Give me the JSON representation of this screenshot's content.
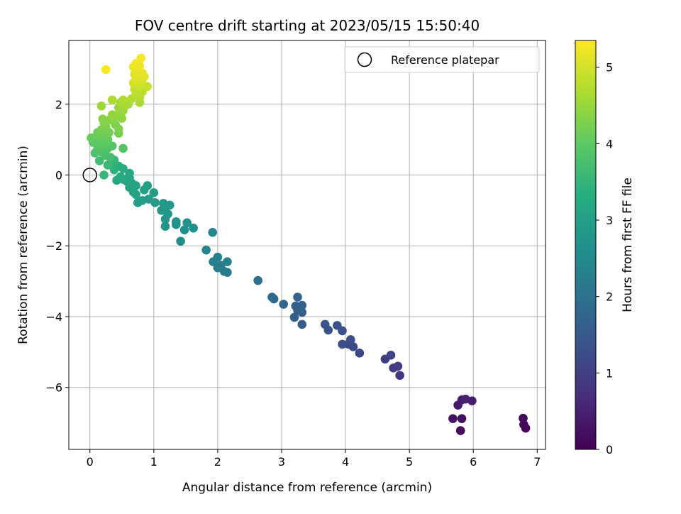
{
  "chart_data": {
    "type": "scatter",
    "title": "FOV centre drift starting at 2023/05/15 15:50:40",
    "xlabel": "Angular distance from reference (arcmin)",
    "ylabel": "Rotation from reference (arcmin)",
    "xlim": [
      -0.33,
      7.13
    ],
    "ylim": [
      -7.75,
      3.8
    ],
    "xticks": [
      0,
      1,
      2,
      3,
      4,
      5,
      6,
      7
    ],
    "yticks": [
      -6,
      -4,
      -2,
      0,
      2
    ],
    "grid": true,
    "legend": {
      "position": "top-right",
      "entries": [
        "Reference platepar"
      ]
    },
    "reference_point": {
      "x": 0,
      "y": 0
    },
    "colorbar": {
      "label": "Hours from first FF file",
      "range": [
        0,
        5.35
      ],
      "ticks": [
        0,
        1,
        2,
        3,
        4,
        5
      ],
      "colormap": "viridis"
    },
    "points": [
      {
        "x": 6.82,
        "y": -7.15,
        "h": 0.05
      },
      {
        "x": 6.79,
        "y": -7.05,
        "h": 0.08
      },
      {
        "x": 6.78,
        "y": -6.87,
        "h": 0.1
      },
      {
        "x": 5.8,
        "y": -7.22,
        "h": 0.15
      },
      {
        "x": 5.82,
        "y": -6.88,
        "h": 0.22
      },
      {
        "x": 5.68,
        "y": -6.88,
        "h": 0.28
      },
      {
        "x": 5.76,
        "y": -6.5,
        "h": 0.35
      },
      {
        "x": 5.82,
        "y": -6.35,
        "h": 0.4
      },
      {
        "x": 5.98,
        "y": -6.38,
        "h": 0.45
      },
      {
        "x": 5.88,
        "y": -6.33,
        "h": 0.48
      },
      {
        "x": 4.85,
        "y": -5.66,
        "h": 0.85
      },
      {
        "x": 4.75,
        "y": -5.45,
        "h": 0.9
      },
      {
        "x": 4.82,
        "y": -5.4,
        "h": 0.95
      },
      {
        "x": 4.62,
        "y": -5.2,
        "h": 1.0
      },
      {
        "x": 4.71,
        "y": -5.09,
        "h": 1.05
      },
      {
        "x": 4.22,
        "y": -5.03,
        "h": 1.15
      },
      {
        "x": 4.12,
        "y": -4.85,
        "h": 1.2
      },
      {
        "x": 4.05,
        "y": -4.78,
        "h": 1.22
      },
      {
        "x": 3.95,
        "y": -4.78,
        "h": 1.25
      },
      {
        "x": 4.08,
        "y": -4.65,
        "h": 1.28
      },
      {
        "x": 3.95,
        "y": -4.4,
        "h": 1.3
      },
      {
        "x": 3.87,
        "y": -4.25,
        "h": 1.35
      },
      {
        "x": 3.73,
        "y": -4.38,
        "h": 1.38
      },
      {
        "x": 3.68,
        "y": -4.22,
        "h": 1.4
      },
      {
        "x": 3.32,
        "y": -4.22,
        "h": 1.55
      },
      {
        "x": 3.2,
        "y": -4.02,
        "h": 1.6
      },
      {
        "x": 3.32,
        "y": -3.88,
        "h": 1.62
      },
      {
        "x": 3.25,
        "y": -3.82,
        "h": 1.64
      },
      {
        "x": 3.22,
        "y": -3.7,
        "h": 1.66
      },
      {
        "x": 3.32,
        "y": -3.68,
        "h": 1.68
      },
      {
        "x": 3.25,
        "y": -3.45,
        "h": 1.7
      },
      {
        "x": 3.03,
        "y": -3.65,
        "h": 1.75
      },
      {
        "x": 2.88,
        "y": -3.5,
        "h": 1.8
      },
      {
        "x": 2.85,
        "y": -3.45,
        "h": 1.82
      },
      {
        "x": 2.63,
        "y": -2.98,
        "h": 1.95
      },
      {
        "x": 2.15,
        "y": -2.75,
        "h": 2.2
      },
      {
        "x": 2.1,
        "y": -2.72,
        "h": 2.22
      },
      {
        "x": 2.0,
        "y": -2.62,
        "h": 2.25
      },
      {
        "x": 2.05,
        "y": -2.55,
        "h": 2.27
      },
      {
        "x": 1.93,
        "y": -2.45,
        "h": 2.3
      },
      {
        "x": 2.15,
        "y": -2.45,
        "h": 2.32
      },
      {
        "x": 2.0,
        "y": -2.32,
        "h": 2.35
      },
      {
        "x": 1.82,
        "y": -2.12,
        "h": 2.4
      },
      {
        "x": 1.92,
        "y": -1.62,
        "h": 2.45
      },
      {
        "x": 1.42,
        "y": -1.87,
        "h": 2.6
      },
      {
        "x": 1.48,
        "y": -1.55,
        "h": 2.65
      },
      {
        "x": 1.62,
        "y": -1.5,
        "h": 2.68
      },
      {
        "x": 1.35,
        "y": -1.4,
        "h": 2.7
      },
      {
        "x": 1.52,
        "y": -1.35,
        "h": 2.72
      },
      {
        "x": 1.35,
        "y": -1.32,
        "h": 2.74
      },
      {
        "x": 1.18,
        "y": -1.45,
        "h": 2.76
      },
      {
        "x": 1.18,
        "y": -1.25,
        "h": 2.78
      },
      {
        "x": 1.22,
        "y": -1.1,
        "h": 2.8
      },
      {
        "x": 1.12,
        "y": -1.0,
        "h": 2.82
      },
      {
        "x": 1.18,
        "y": -0.92,
        "h": 2.84
      },
      {
        "x": 1.25,
        "y": -0.85,
        "h": 2.86
      },
      {
        "x": 1.15,
        "y": -0.8,
        "h": 2.88
      },
      {
        "x": 1.02,
        "y": -0.78,
        "h": 2.9
      },
      {
        "x": 0.92,
        "y": -0.68,
        "h": 2.92
      },
      {
        "x": 0.82,
        "y": -0.72,
        "h": 2.94
      },
      {
        "x": 0.75,
        "y": -0.78,
        "h": 2.96
      },
      {
        "x": 1.0,
        "y": -0.5,
        "h": 2.98
      },
      {
        "x": 0.9,
        "y": -0.3,
        "h": 3.0
      },
      {
        "x": 0.85,
        "y": -0.42,
        "h": 3.02
      },
      {
        "x": 0.72,
        "y": -0.55,
        "h": 3.04
      },
      {
        "x": 0.68,
        "y": -0.48,
        "h": 3.06
      },
      {
        "x": 0.62,
        "y": -0.35,
        "h": 3.08
      },
      {
        "x": 0.72,
        "y": -0.3,
        "h": 3.1
      },
      {
        "x": 0.65,
        "y": -0.22,
        "h": 3.12
      },
      {
        "x": 0.58,
        "y": -0.18,
        "h": 3.14
      },
      {
        "x": 0.62,
        "y": -0.08,
        "h": 3.16
      },
      {
        "x": 0.52,
        "y": -0.12,
        "h": 3.18
      },
      {
        "x": 0.42,
        "y": -0.15,
        "h": 3.2
      },
      {
        "x": 0.48,
        "y": -0.05,
        "h": 3.22
      },
      {
        "x": 0.62,
        "y": 0.05,
        "h": 3.25
      },
      {
        "x": 0.52,
        "y": 0.18,
        "h": 3.3
      },
      {
        "x": 0.45,
        "y": 0.25,
        "h": 3.35
      },
      {
        "x": 0.38,
        "y": 0.15,
        "h": 3.4
      },
      {
        "x": 0.32,
        "y": 0.3,
        "h": 3.45
      },
      {
        "x": 0.38,
        "y": 0.42,
        "h": 3.5
      },
      {
        "x": 0.22,
        "y": 0.0,
        "h": 3.55
      },
      {
        "x": 0.28,
        "y": 0.28,
        "h": 3.6
      },
      {
        "x": 0.15,
        "y": 0.4,
        "h": 3.65
      },
      {
        "x": 0.32,
        "y": 0.5,
        "h": 3.7
      },
      {
        "x": 0.25,
        "y": 0.55,
        "h": 3.75
      },
      {
        "x": 0.08,
        "y": 0.62,
        "h": 3.8
      },
      {
        "x": 0.18,
        "y": 0.65,
        "h": 3.82
      },
      {
        "x": 0.12,
        "y": 0.72,
        "h": 3.85
      },
      {
        "x": 0.28,
        "y": 0.75,
        "h": 3.88
      },
      {
        "x": 0.52,
        "y": 0.75,
        "h": 3.9
      },
      {
        "x": 0.35,
        "y": 0.82,
        "h": 3.92
      },
      {
        "x": 0.12,
        "y": 0.85,
        "h": 3.95
      },
      {
        "x": 0.22,
        "y": 0.88,
        "h": 3.97
      },
      {
        "x": 0.05,
        "y": 0.92,
        "h": 4.0
      },
      {
        "x": 0.18,
        "y": 0.95,
        "h": 4.02
      },
      {
        "x": 0.28,
        "y": 1.0,
        "h": 4.05
      },
      {
        "x": 0.02,
        "y": 1.05,
        "h": 4.08
      },
      {
        "x": 0.15,
        "y": 1.08,
        "h": 4.1
      },
      {
        "x": 0.22,
        "y": 1.15,
        "h": 4.12
      },
      {
        "x": 0.12,
        "y": 1.2,
        "h": 4.15
      },
      {
        "x": 0.3,
        "y": 1.2,
        "h": 4.18
      },
      {
        "x": 0.45,
        "y": 1.18,
        "h": 4.2
      },
      {
        "x": 0.18,
        "y": 1.28,
        "h": 4.22
      },
      {
        "x": 0.25,
        "y": 1.35,
        "h": 4.25
      },
      {
        "x": 0.45,
        "y": 1.3,
        "h": 4.28
      },
      {
        "x": 0.4,
        "y": 1.42,
        "h": 4.3
      },
      {
        "x": 0.22,
        "y": 1.48,
        "h": 4.32
      },
      {
        "x": 0.3,
        "y": 1.55,
        "h": 4.35
      },
      {
        "x": 0.2,
        "y": 1.58,
        "h": 4.38
      },
      {
        "x": 0.38,
        "y": 1.62,
        "h": 4.4
      },
      {
        "x": 0.5,
        "y": 1.6,
        "h": 4.42
      },
      {
        "x": 0.35,
        "y": 1.7,
        "h": 4.45
      },
      {
        "x": 0.45,
        "y": 1.72,
        "h": 4.48
      },
      {
        "x": 0.52,
        "y": 1.82,
        "h": 4.5
      },
      {
        "x": 0.45,
        "y": 1.9,
        "h": 4.52
      },
      {
        "x": 0.18,
        "y": 1.95,
        "h": 4.55
      },
      {
        "x": 0.55,
        "y": 1.95,
        "h": 4.58
      },
      {
        "x": 0.6,
        "y": 2.0,
        "h": 4.6
      },
      {
        "x": 0.48,
        "y": 2.05,
        "h": 4.62
      },
      {
        "x": 0.78,
        "y": 2.05,
        "h": 4.65
      },
      {
        "x": 0.35,
        "y": 2.12,
        "h": 4.68
      },
      {
        "x": 0.52,
        "y": 2.12,
        "h": 4.7
      },
      {
        "x": 0.65,
        "y": 2.15,
        "h": 4.72
      },
      {
        "x": 0.78,
        "y": 2.2,
        "h": 4.75
      },
      {
        "x": 0.72,
        "y": 2.28,
        "h": 4.78
      },
      {
        "x": 0.82,
        "y": 2.35,
        "h": 4.8
      },
      {
        "x": 0.7,
        "y": 2.42,
        "h": 4.85
      },
      {
        "x": 0.9,
        "y": 2.5,
        "h": 4.9
      },
      {
        "x": 0.78,
        "y": 2.52,
        "h": 4.95
      },
      {
        "x": 0.68,
        "y": 2.6,
        "h": 5.0
      },
      {
        "x": 0.75,
        "y": 2.65,
        "h": 5.02
      },
      {
        "x": 0.82,
        "y": 2.7,
        "h": 5.05
      },
      {
        "x": 0.72,
        "y": 2.75,
        "h": 5.08
      },
      {
        "x": 0.85,
        "y": 2.78,
        "h": 5.1
      },
      {
        "x": 0.7,
        "y": 2.85,
        "h": 5.12
      },
      {
        "x": 0.82,
        "y": 2.88,
        "h": 5.15
      },
      {
        "x": 0.75,
        "y": 2.95,
        "h": 5.18
      },
      {
        "x": 0.68,
        "y": 3.05,
        "h": 5.2
      },
      {
        "x": 0.78,
        "y": 3.08,
        "h": 5.22
      },
      {
        "x": 0.72,
        "y": 3.15,
        "h": 5.25
      },
      {
        "x": 0.8,
        "y": 3.3,
        "h": 5.3
      },
      {
        "x": 0.25,
        "y": 2.98,
        "h": 5.32
      }
    ]
  }
}
